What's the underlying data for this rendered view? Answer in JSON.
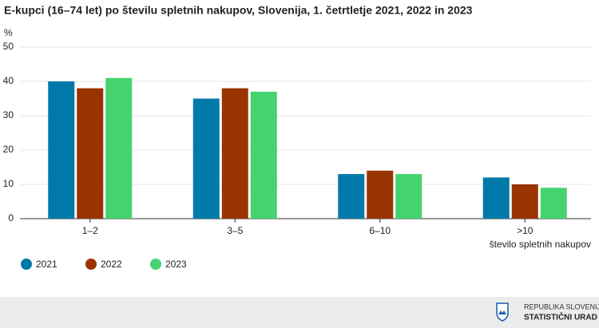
{
  "chart_data": {
    "type": "bar",
    "title": "E-kupci (16–74 let) po številu spletnih nakupov, Slovenija, 1. četrtletje 2021, 2022 in 2023",
    "y_label": "%",
    "x_label": "število spletnih nakupov",
    "categories": [
      "1–2",
      "3–5",
      "6–10",
      ">10"
    ],
    "series": [
      {
        "name": "2021",
        "color": "#0079a8",
        "values": [
          40,
          35,
          13,
          12
        ]
      },
      {
        "name": "2022",
        "color": "#993300",
        "values": [
          38,
          38,
          14,
          10
        ]
      },
      {
        "name": "2023",
        "color": "#45d36f",
        "values": [
          41,
          37,
          13,
          9
        ]
      }
    ],
    "ylim": [
      0,
      50
    ],
    "yticks": [
      0,
      10,
      20,
      30,
      40,
      50
    ],
    "grid": true
  },
  "footer": {
    "line1": "REPUBLIKA SLOVENIJA",
    "line2": "STATISTIČNI URAD"
  }
}
